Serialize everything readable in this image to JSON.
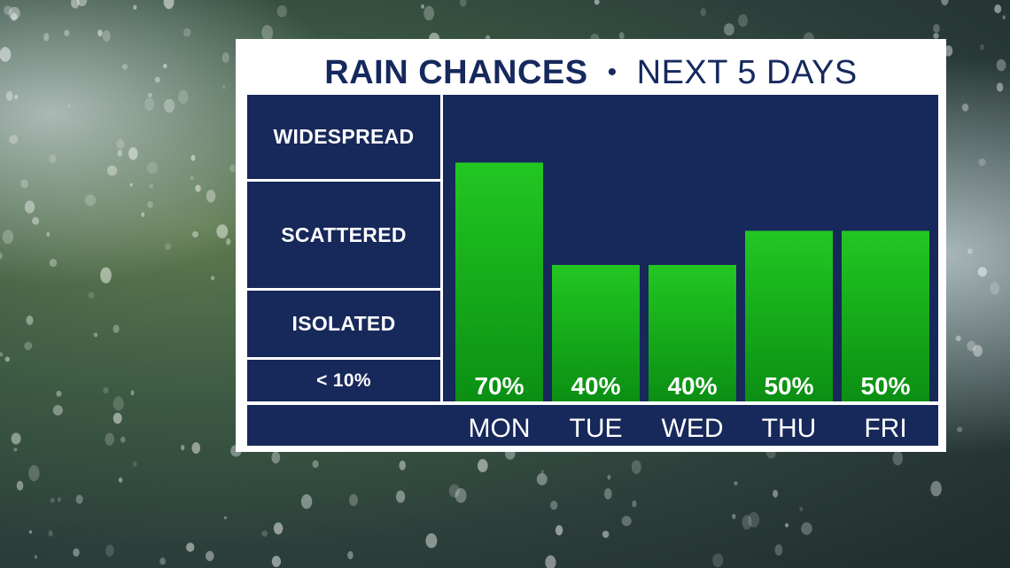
{
  "title": {
    "bold": "RAIN CHANCES",
    "bullet": "•",
    "rest": "NEXT 5 DAYS"
  },
  "categories_scale": [
    "WIDESPREAD",
    "SCATTERED",
    "ISOLATED",
    "< 10%"
  ],
  "colors": {
    "navy": "#17285a",
    "title": "#16295e",
    "bar_top": "#1ec41e",
    "bar_bottom": "#0a8a12"
  },
  "chart_data": {
    "type": "bar",
    "categories": [
      "MON",
      "TUE",
      "WED",
      "THU",
      "FRI"
    ],
    "values": [
      70,
      40,
      40,
      50,
      50
    ],
    "value_labels": [
      "70%",
      "40%",
      "40%",
      "50%",
      "50%"
    ],
    "ylim": [
      0,
      100
    ],
    "grid": false,
    "legend": "none"
  }
}
